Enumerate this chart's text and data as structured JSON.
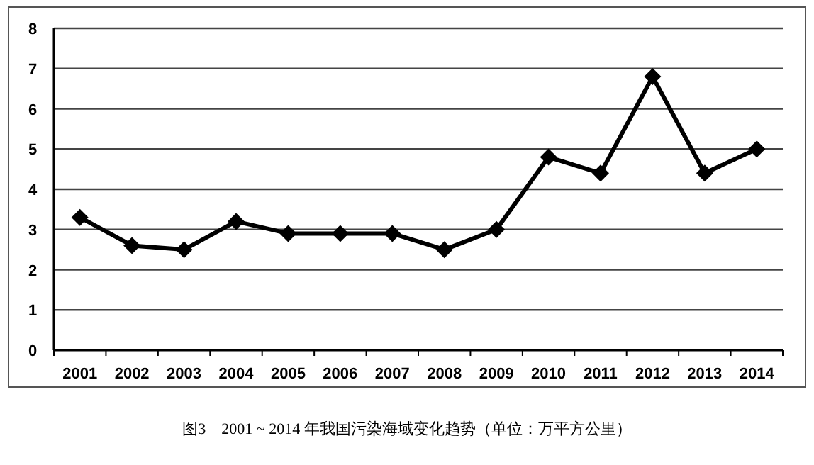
{
  "chart_data": {
    "type": "line",
    "categories": [
      "2001",
      "2002",
      "2003",
      "2004",
      "2005",
      "2006",
      "2007",
      "2008",
      "2009",
      "2010",
      "2011",
      "2012",
      "2013",
      "2014"
    ],
    "series": [
      {
        "color": "#000000",
        "values": [
          3.3,
          2.6,
          2.5,
          3.2,
          2.9,
          2.9,
          2.9,
          2.5,
          3.0,
          4.8,
          4.4,
          6.8,
          4.4,
          5.0
        ]
      }
    ],
    "ylim": [
      0,
      8
    ],
    "yticks": [
      0,
      1,
      2,
      3,
      4,
      5,
      6,
      7,
      8
    ],
    "grid": "y",
    "marker": "diamond",
    "line_style": "solid",
    "annotations": [
      "图3　2001 ~ 2014 年我国污染海域变化趋势（单位：万平方公里）"
    ]
  }
}
